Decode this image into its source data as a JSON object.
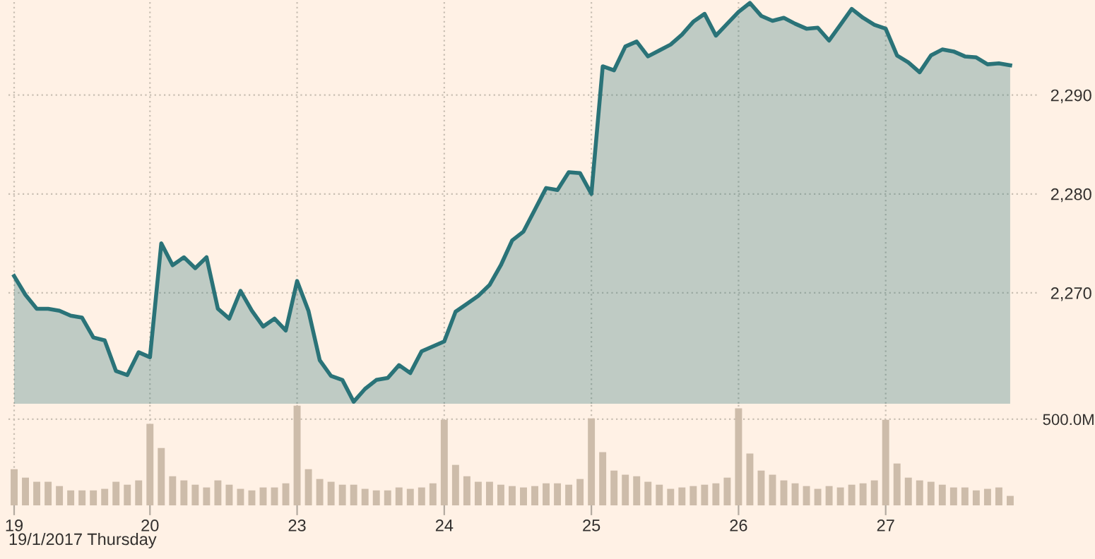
{
  "chart_data": [
    {
      "type": "area",
      "categories": [
        "19",
        null,
        null,
        null,
        null,
        null,
        null,
        null,
        null,
        null,
        null,
        null,
        "20",
        null,
        null,
        null,
        null,
        null,
        null,
        null,
        null,
        null,
        null,
        null,
        null,
        "23",
        null,
        null,
        null,
        null,
        null,
        null,
        null,
        null,
        null,
        null,
        null,
        null,
        "24",
        null,
        null,
        null,
        null,
        null,
        null,
        null,
        null,
        null,
        null,
        null,
        null,
        "25",
        null,
        null,
        null,
        null,
        null,
        null,
        null,
        null,
        null,
        null,
        null,
        null,
        "26",
        null,
        null,
        null,
        null,
        null,
        null,
        null,
        null,
        null,
        null,
        null,
        null,
        "27",
        null,
        null,
        null,
        null,
        null,
        null,
        null,
        null,
        null,
        null,
        null,
        null,
        null
      ],
      "series": [
        {
          "color": "#2a7378",
          "values": [
            2271.7,
            2269.8,
            2268.4,
            2268.4,
            2268.2,
            2267.7,
            2267.5,
            2265.5,
            2265.2,
            2262.1,
            2261.7,
            2264.0,
            2263.5,
            2275.0,
            2272.8,
            2273.6,
            2272.5,
            2273.6,
            2268.4,
            2267.4,
            2270.2,
            2268.2,
            2266.6,
            2267.4,
            2266.2,
            2271.2,
            2268.2,
            2263.2,
            2261.6,
            2261.2,
            2259.0,
            2260.3,
            2261.2,
            2261.4,
            2262.7,
            2261.9,
            2264.1,
            2264.6,
            2265.1,
            2268.1,
            2268.9,
            2269.7,
            2270.8,
            2272.8,
            2275.3,
            2276.2,
            2278.4,
            2280.6,
            2280.4,
            2282.2,
            2282.1,
            2280.0,
            2292.9,
            2292.5,
            2294.9,
            2295.4,
            2293.9,
            2294.5,
            2295.1,
            2296.1,
            2297.4,
            2298.2,
            2296.0,
            2297.2,
            2298.4,
            2299.3,
            2298.0,
            2297.5,
            2297.8,
            2297.2,
            2296.7,
            2296.8,
            2295.5,
            2297.1,
            2298.7,
            2297.8,
            2297.1,
            2296.7,
            2294.0,
            2293.3,
            2292.3,
            2294.0,
            2294.6,
            2294.4,
            2293.9,
            2293.8,
            2293.1,
            2293.2,
            2293.0,
            null,
            null
          ]
        }
      ],
      "ylim": [
        2258.8,
        2299.6
      ],
      "yticks": [
        {
          "value": 2270,
          "label": "2,270"
        },
        {
          "value": 2280,
          "label": "2,280"
        },
        {
          "value": 2290,
          "label": "2,290"
        }
      ],
      "tick_labels": "y",
      "grid": true
    },
    {
      "type": "bar",
      "categories": [
        "19",
        null,
        null,
        null,
        null,
        null,
        null,
        null,
        null,
        null,
        null,
        null,
        "20",
        null,
        null,
        null,
        null,
        null,
        null,
        null,
        null,
        null,
        null,
        null,
        null,
        "23",
        null,
        null,
        null,
        null,
        null,
        null,
        null,
        null,
        null,
        null,
        null,
        null,
        "24",
        null,
        null,
        null,
        null,
        null,
        null,
        null,
        null,
        null,
        null,
        null,
        null,
        "25",
        null,
        null,
        null,
        null,
        null,
        null,
        null,
        null,
        null,
        null,
        null,
        null,
        "26",
        null,
        null,
        null,
        null,
        null,
        null,
        null,
        null,
        null,
        null,
        null,
        null,
        "27",
        null,
        null,
        null,
        null,
        null,
        null,
        null,
        null,
        null,
        null,
        null,
        null,
        null
      ],
      "series": [
        {
          "color": "#cdbcaa",
          "values": [
            210,
            161,
            137,
            137,
            112,
            87,
            87,
            87,
            96,
            137,
            120,
            145,
            473,
            333,
            169,
            145,
            120,
            104,
            145,
            120,
            96,
            87,
            104,
            104,
            128,
            579,
            210,
            153,
            137,
            120,
            120,
            96,
            87,
            87,
            104,
            96,
            104,
            128,
            497,
            235,
            169,
            137,
            137,
            120,
            112,
            104,
            112,
            128,
            128,
            120,
            153,
            505,
            309,
            202,
            178,
            169,
            137,
            120,
            96,
            104,
            112,
            120,
            128,
            161,
            563,
            301,
            202,
            178,
            145,
            128,
            112,
            96,
            112,
            104,
            120,
            128,
            145,
            497,
            243,
            161,
            145,
            137,
            120,
            104,
            104,
            87,
            96,
            104,
            55,
            null,
            null
          ]
        }
      ],
      "ylim": [
        0,
        590
      ],
      "yticks": [
        {
          "value": 500,
          "label": "500.0M"
        }
      ],
      "grid": true,
      "annotations": [
        "19/1/2017 Thursday"
      ]
    }
  ]
}
